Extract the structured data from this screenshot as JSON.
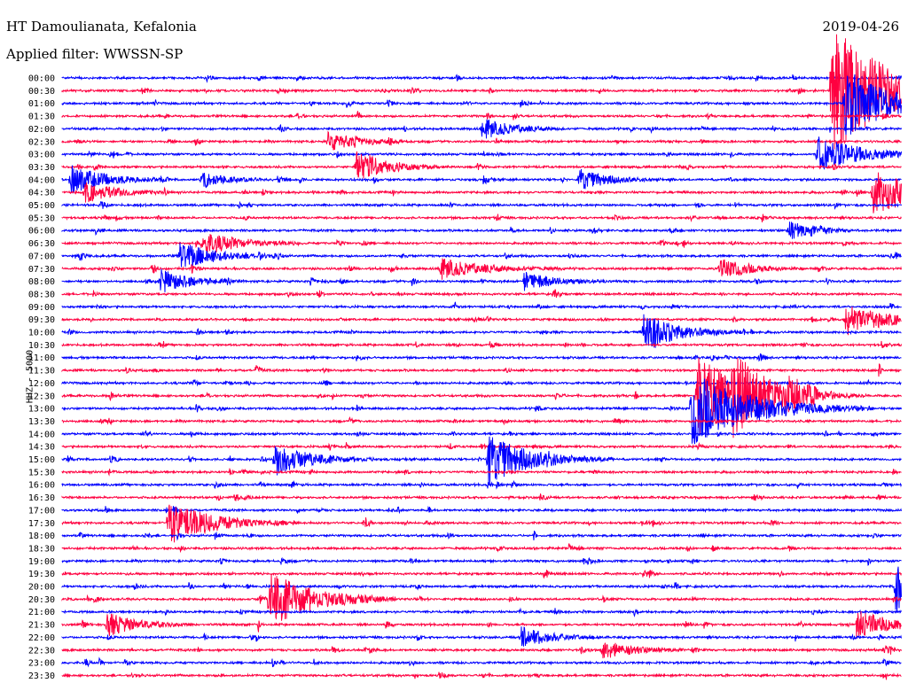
{
  "header": {
    "station": "HT Damoulianata, Kefalonia",
    "filter": "Applied filter: WWSSN-SP",
    "date": "2019-04-26"
  },
  "chart_data": {
    "type": "line",
    "ylabel": "HHZ - 5000",
    "tick_labels": [
      "00:00",
      "00:30",
      "01:00",
      "01:30",
      "02:00",
      "02:30",
      "03:00",
      "03:30",
      "04:00",
      "04:30",
      "05:00",
      "05:30",
      "06:00",
      "06:30",
      "07:00",
      "07:30",
      "08:00",
      "08:30",
      "09:00",
      "09:30",
      "10:00",
      "10:30",
      "11:00",
      "11:30",
      "12:00",
      "12:30",
      "13:00",
      "13:30",
      "14:00",
      "14:30",
      "15:00",
      "15:30",
      "16:00",
      "16:30",
      "17:00",
      "17:30",
      "18:00",
      "18:30",
      "19:00",
      "19:30",
      "20:00",
      "20:30",
      "21:00",
      "21:30",
      "22:00",
      "22:30",
      "23:00",
      "23:30"
    ],
    "trace_colors": [
      "#0000ff",
      "#ff0040"
    ],
    "trace_minutes": 30,
    "events": [
      {
        "trace": 1,
        "minute": 27.5,
        "amp": 75,
        "dur": 2.0
      },
      {
        "trace": 2,
        "minute": 28.0,
        "amp": 40,
        "dur": 1.5
      },
      {
        "trace": 4,
        "minute": 15.0,
        "amp": 12,
        "dur": 1.0
      },
      {
        "trace": 5,
        "minute": 9.5,
        "amp": 11,
        "dur": 1.0
      },
      {
        "trace": 6,
        "minute": 27.0,
        "amp": 20,
        "dur": 1.5
      },
      {
        "trace": 7,
        "minute": 10.5,
        "amp": 18,
        "dur": 1.0
      },
      {
        "trace": 8,
        "minute": 0.3,
        "amp": 16,
        "dur": 1.2
      },
      {
        "trace": 8,
        "minute": 5.0,
        "amp": 9,
        "dur": 0.8
      },
      {
        "trace": 8,
        "minute": 18.5,
        "amp": 12,
        "dur": 1.0
      },
      {
        "trace": 9,
        "minute": 0.8,
        "amp": 12,
        "dur": 1.0
      },
      {
        "trace": 9,
        "minute": 29.0,
        "amp": 25,
        "dur": 1.8
      },
      {
        "trace": 12,
        "minute": 26.0,
        "amp": 10,
        "dur": 0.8
      },
      {
        "trace": 13,
        "minute": 5.0,
        "amp": 14,
        "dur": 1.2
      },
      {
        "trace": 14,
        "minute": 4.2,
        "amp": 16,
        "dur": 1.2
      },
      {
        "trace": 15,
        "minute": 13.5,
        "amp": 11,
        "dur": 1.5
      },
      {
        "trace": 15,
        "minute": 23.5,
        "amp": 12,
        "dur": 1.0
      },
      {
        "trace": 16,
        "minute": 3.5,
        "amp": 14,
        "dur": 1.0
      },
      {
        "trace": 16,
        "minute": 16.5,
        "amp": 11,
        "dur": 1.0
      },
      {
        "trace": 19,
        "minute": 28.0,
        "amp": 18,
        "dur": 1.5
      },
      {
        "trace": 20,
        "minute": 20.8,
        "amp": 20,
        "dur": 1.2
      },
      {
        "trace": 25,
        "minute": 22.7,
        "amp": 48,
        "dur": 1.5
      },
      {
        "trace": 25,
        "minute": 24.0,
        "amp": 30,
        "dur": 1.2
      },
      {
        "trace": 25,
        "minute": 25.9,
        "amp": 12,
        "dur": 1.0
      },
      {
        "trace": 26,
        "minute": 22.5,
        "amp": 42,
        "dur": 2.0
      },
      {
        "trace": 30,
        "minute": 7.6,
        "amp": 18,
        "dur": 1.2
      },
      {
        "trace": 30,
        "minute": 15.2,
        "amp": 28,
        "dur": 1.5
      },
      {
        "trace": 35,
        "minute": 3.8,
        "amp": 25,
        "dur": 1.5
      },
      {
        "trace": 40,
        "minute": 29.8,
        "amp": 38,
        "dur": 1.5
      },
      {
        "trace": 41,
        "minute": 7.4,
        "amp": 32,
        "dur": 1.5
      },
      {
        "trace": 43,
        "minute": 1.6,
        "amp": 14,
        "dur": 1.0
      },
      {
        "trace": 43,
        "minute": 28.4,
        "amp": 16,
        "dur": 1.2
      },
      {
        "trace": 44,
        "minute": 16.4,
        "amp": 12,
        "dur": 1.0
      },
      {
        "trace": 45,
        "minute": 19.3,
        "amp": 11,
        "dur": 1.0
      }
    ]
  }
}
